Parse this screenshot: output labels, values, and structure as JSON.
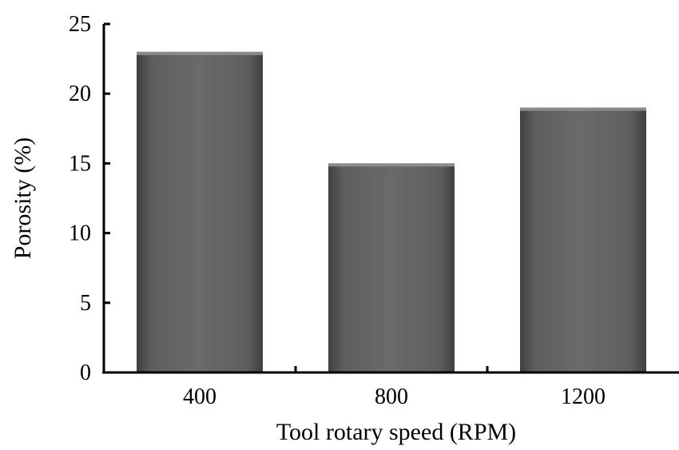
{
  "chart_data": {
    "type": "bar",
    "categories": [
      "400",
      "800",
      "1200"
    ],
    "values": [
      23,
      15,
      19
    ],
    "xlabel": "Tool rotary speed (RPM)",
    "ylabel": "Porosity (%)",
    "ylim": [
      0,
      25
    ],
    "yticks": [
      "0",
      "5",
      "10",
      "15",
      "20",
      "25"
    ],
    "grid": false,
    "legend": "none",
    "colors": {
      "bar_dark": "#3f3f3f",
      "bar_mid": "#5e5e5e",
      "bar_light": "#767676",
      "axis": "#000000"
    }
  }
}
